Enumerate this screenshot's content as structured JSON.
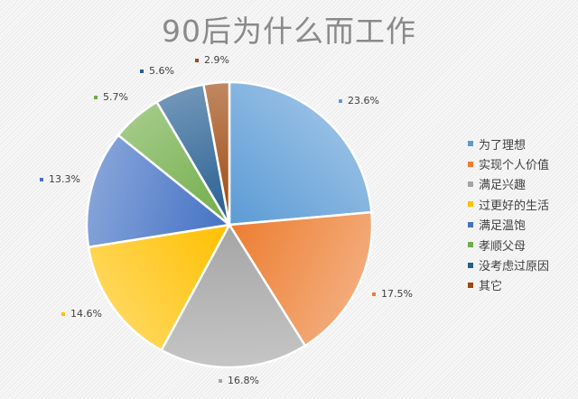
{
  "title": "90后为什么而工作",
  "chart_data": {
    "type": "pie",
    "title": "90后为什么而工作",
    "categories": [
      "为了理想",
      "实现个人价值",
      "满足兴趣",
      "过更好的生活",
      "满足温饱",
      "孝顺父母",
      "没考虑过原因",
      "其它"
    ],
    "values": [
      23.6,
      17.5,
      16.8,
      14.6,
      13.3,
      5.7,
      5.6,
      2.9
    ],
    "labels": [
      "23.6%",
      "17.5%",
      "16.8%",
      "14.6%",
      "13.3%",
      "5.7%",
      "5.6%",
      "2.9%"
    ],
    "colors": [
      "#5b9bd5",
      "#ed7d31",
      "#a5a5a5",
      "#ffc000",
      "#4472c4",
      "#70ad47",
      "#255e91",
      "#9e480e"
    ],
    "start_angle_deg": 0,
    "direction": "clockwise",
    "legend_position": "right",
    "xlabel": "",
    "ylabel": ""
  },
  "legend": [
    {
      "label": "为了理想",
      "color": "#5b9bd5"
    },
    {
      "label": "实现个人价值",
      "color": "#ed7d31"
    },
    {
      "label": "满足兴趣",
      "color": "#a5a5a5"
    },
    {
      "label": "过更好的生活",
      "color": "#ffc000"
    },
    {
      "label": "满足温饱",
      "color": "#4472c4"
    },
    {
      "label": "孝顺父母",
      "color": "#70ad47"
    },
    {
      "label": "没考虑过原因",
      "color": "#255e91"
    },
    {
      "label": "其它",
      "color": "#9e480e"
    }
  ]
}
